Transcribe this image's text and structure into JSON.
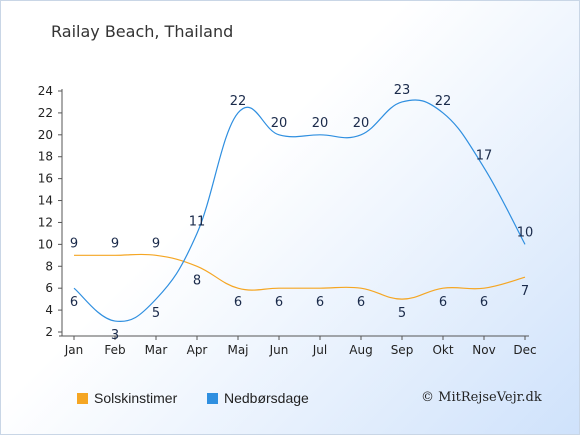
{
  "chart_data": {
    "type": "line",
    "title": "Railay Beach, Thailand",
    "categories": [
      "Jan",
      "Feb",
      "Mar",
      "Apr",
      "Maj",
      "Jun",
      "Jul",
      "Aug",
      "Sep",
      "Okt",
      "Nov",
      "Dec"
    ],
    "series": [
      {
        "name": "Solskinstimer",
        "color": "#f5a623",
        "values": [
          9,
          9,
          9,
          8,
          6,
          6,
          6,
          6,
          5,
          6,
          6,
          7
        ]
      },
      {
        "name": "Nedbørsdage",
        "color": "#2f8fe0",
        "values": [
          6,
          3,
          5,
          11,
          22,
          20,
          20,
          20,
          23,
          22,
          17,
          10
        ]
      }
    ],
    "ylim": [
      2,
      24
    ],
    "yticks": [
      2,
      4,
      6,
      8,
      10,
      12,
      14,
      16,
      18,
      20,
      22,
      24
    ],
    "grid": false,
    "legend_position": "bottom"
  },
  "credit": "© MitRejseVejr.dk"
}
